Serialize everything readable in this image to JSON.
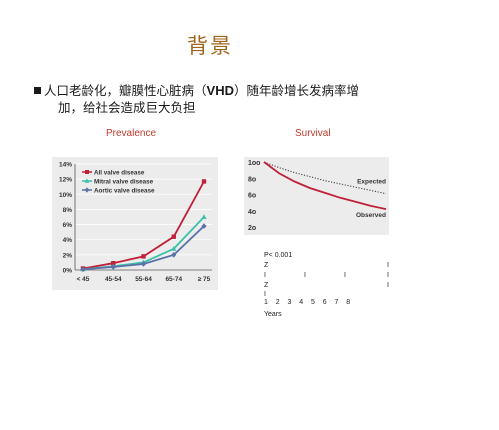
{
  "slide": {
    "title": "背景",
    "bullet_line1_pre": "人口老龄化，瓣膜性心脏病",
    "bullet_line1_paren_open": "（",
    "bullet_line1_acronym": "VHD",
    "bullet_line1_paren_close": "）",
    "bullet_line1_post": "随年龄增长发病率增",
    "bullet_line2": "加，给社会造成巨大负担",
    "prevalence_label": "Prevalence",
    "survival_label": "Survival"
  },
  "chart_data": [
    {
      "type": "line",
      "categories": [
        "< 45",
        "45-54",
        "55-64",
        "65-74",
        "≥ 75"
      ],
      "ylim": [
        0,
        14
      ],
      "yticks": [
        "0%",
        "2%",
        "4%",
        "6%",
        "8%",
        "10%",
        "12%",
        "14%"
      ],
      "legend_position": "top-left",
      "series": [
        {
          "name": "All valve disease",
          "color": "#c0203a",
          "marker": "square",
          "values": [
            0.2,
            0.9,
            1.8,
            4.4,
            11.7
          ]
        },
        {
          "name": "Mitral valve disease",
          "color": "#3cc0a8",
          "marker": "triangle",
          "values": [
            0.1,
            0.5,
            1.0,
            2.8,
            7.0
          ]
        },
        {
          "name": "Aortic valve disease",
          "color": "#5a72a8",
          "marker": "diamond",
          "values": [
            0.1,
            0.4,
            0.8,
            2.0,
            5.8
          ]
        }
      ]
    },
    {
      "type": "line",
      "ylim": [
        20,
        100
      ],
      "yticks": [
        "2o",
        "4o",
        "6o",
        "8o",
        "1oo"
      ],
      "x_ticks": [
        "1",
        "2",
        "3",
        "4",
        "5",
        "6",
        "7",
        "8"
      ],
      "xlabel": "Years",
      "pvalue": "P< 0.001",
      "series": [
        {
          "name": "Expected",
          "color": "#444444",
          "style": "dotted",
          "values": [
            100,
            93,
            87,
            82,
            77,
            73,
            69,
            65,
            61
          ]
        },
        {
          "name": "Observed",
          "color": "#c0203a",
          "style": "solid",
          "values": [
            100,
            86,
            76,
            68,
            62,
            56,
            51,
            46,
            42
          ]
        }
      ]
    }
  ]
}
